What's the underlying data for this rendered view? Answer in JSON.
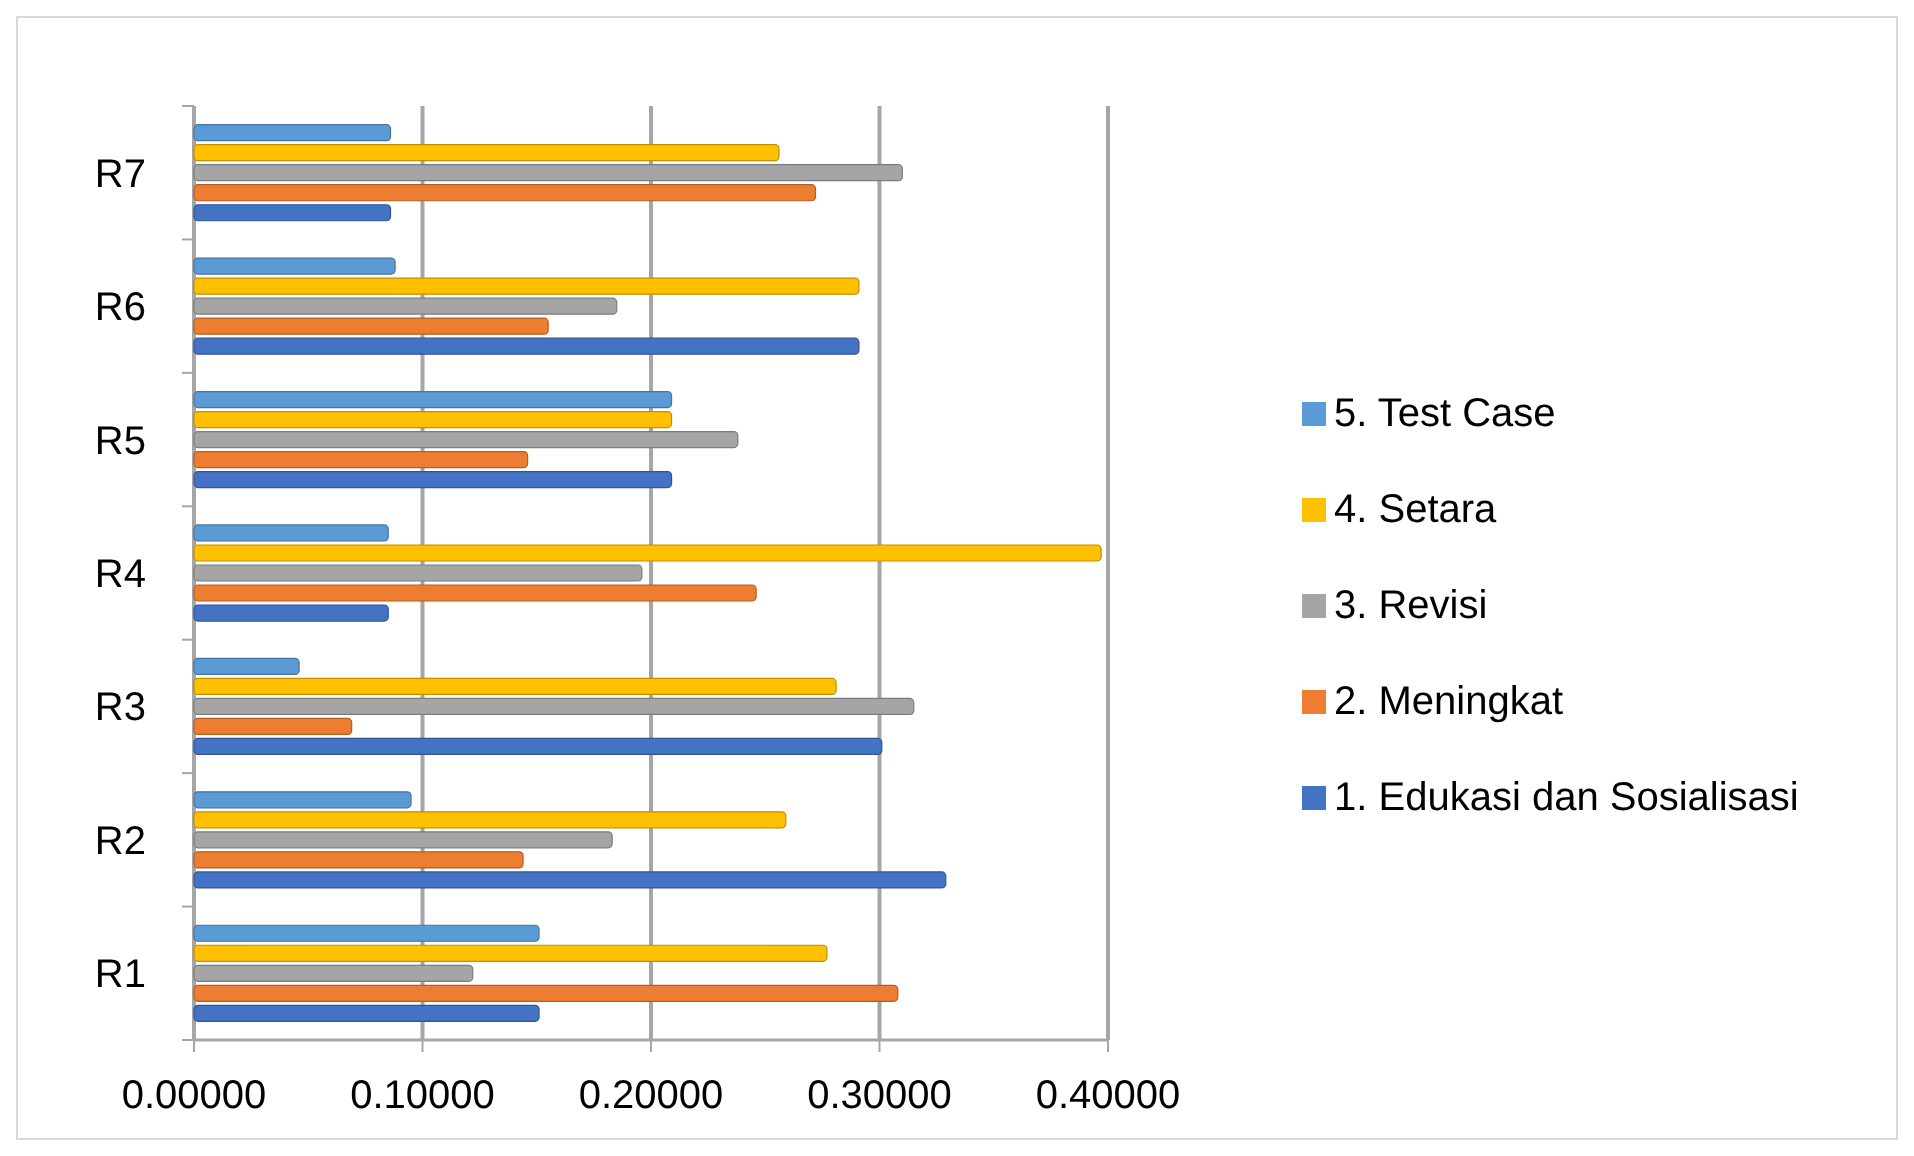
{
  "chart_data": {
    "type": "bar",
    "orientation": "horizontal",
    "categories": [
      "R7",
      "R6",
      "R5",
      "R4",
      "R3",
      "R2",
      "R1"
    ],
    "series": [
      {
        "name": "1. Edukasi dan Sosialisasi",
        "color": "#4472c4",
        "values": [
          0.086,
          0.291,
          0.209,
          0.085,
          0.301,
          0.329,
          0.151
        ]
      },
      {
        "name": "2. Meningkat",
        "color": "#ed7d31",
        "values": [
          0.272,
          0.155,
          0.146,
          0.246,
          0.069,
          0.144,
          0.308
        ]
      },
      {
        "name": "3. Revisi",
        "color": "#a5a5a5",
        "values": [
          0.31,
          0.185,
          0.238,
          0.196,
          0.315,
          0.183,
          0.122
        ]
      },
      {
        "name": "4. Setara",
        "color": "#ffc000",
        "values": [
          0.256,
          0.291,
          0.209,
          0.397,
          0.281,
          0.259,
          0.277
        ]
      },
      {
        "name": "5. Test Case",
        "color": "#5b9bd5",
        "values": [
          0.086,
          0.088,
          0.209,
          0.085,
          0.046,
          0.095,
          0.151
        ]
      }
    ],
    "xlim": [
      0,
      0.4
    ],
    "xticks": [
      {
        "value": 0,
        "label": "0.00000"
      },
      {
        "value": 0.1,
        "label": "0.10000"
      },
      {
        "value": 0.2,
        "label": "0.20000"
      },
      {
        "value": 0.3,
        "label": "0.30000"
      },
      {
        "value": 0.4,
        "label": "0.40000"
      }
    ],
    "grid": "x",
    "legend": "right"
  }
}
